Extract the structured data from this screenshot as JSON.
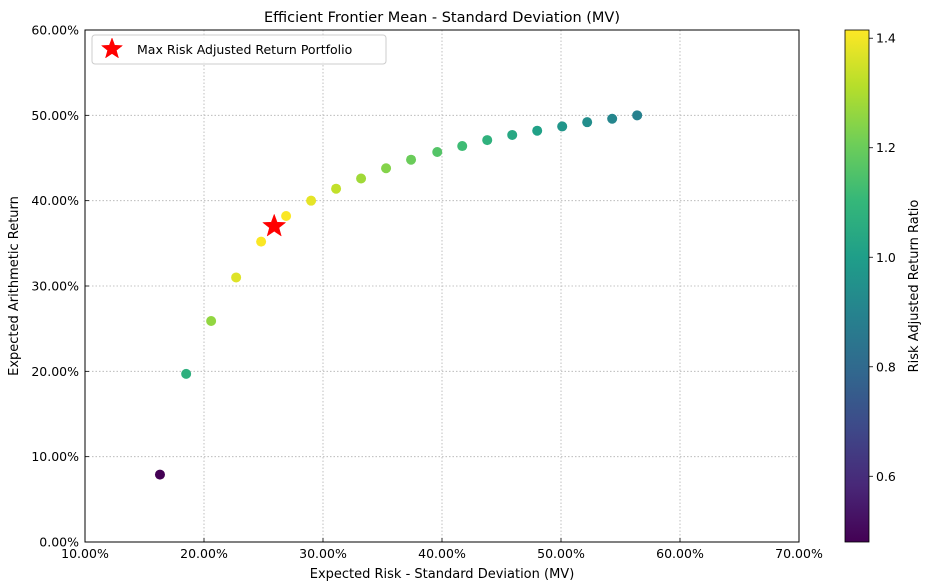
{
  "chart_data": {
    "type": "scatter",
    "title": "Efficient Frontier Mean - Standard Deviation (MV)",
    "xlabel": "Expected Risk - Standard Deviation (MV)",
    "ylabel": "Expected Arithmetic Return",
    "xlim": [
      0.1,
      0.7
    ],
    "ylim": [
      0.0,
      0.6
    ],
    "x_ticks": [
      0.1,
      0.2,
      0.3,
      0.4,
      0.5,
      0.6,
      0.7
    ],
    "x_tick_labels": [
      "10.00%",
      "20.00%",
      "30.00%",
      "40.00%",
      "50.00%",
      "60.00%",
      "70.00%"
    ],
    "y_ticks": [
      0.0,
      0.1,
      0.2,
      0.3,
      0.4,
      0.5,
      0.6
    ],
    "y_tick_labels": [
      "0.00%",
      "10.00%",
      "20.00%",
      "30.00%",
      "40.00%",
      "50.00%",
      "60.00%"
    ],
    "grid": true,
    "legend": {
      "location": "top-left",
      "entries": [
        "Max Risk Adjusted Return Portfolio"
      ]
    },
    "colorbar": {
      "label": "Risk Adjusted Return Ratio",
      "range": [
        0.48,
        1.415
      ],
      "ticks": [
        0.6,
        0.8,
        1.0,
        1.2,
        1.4
      ],
      "tick_labels": [
        "0.6",
        "0.8",
        "1.0",
        "1.2",
        "1.4"
      ],
      "colormap": [
        "#440154",
        "#482878",
        "#3e4989",
        "#31688e",
        "#26828e",
        "#1f9e89",
        "#35b779",
        "#6ece58",
        "#b5de2b",
        "#fde725"
      ]
    },
    "points": [
      {
        "x": 0.163,
        "y": 0.079,
        "ratio": 0.48
      },
      {
        "x": 0.185,
        "y": 0.197,
        "ratio": 1.07
      },
      {
        "x": 0.206,
        "y": 0.259,
        "ratio": 1.26
      },
      {
        "x": 0.227,
        "y": 0.31,
        "ratio": 1.37
      },
      {
        "x": 0.248,
        "y": 0.352,
        "ratio": 1.41
      },
      {
        "x": 0.269,
        "y": 0.382,
        "ratio": 1.41
      },
      {
        "x": 0.29,
        "y": 0.4,
        "ratio": 1.38
      },
      {
        "x": 0.311,
        "y": 0.414,
        "ratio": 1.33
      },
      {
        "x": 0.332,
        "y": 0.426,
        "ratio": 1.28
      },
      {
        "x": 0.353,
        "y": 0.438,
        "ratio": 1.24
      },
      {
        "x": 0.374,
        "y": 0.448,
        "ratio": 1.2
      },
      {
        "x": 0.396,
        "y": 0.457,
        "ratio": 1.16
      },
      {
        "x": 0.417,
        "y": 0.464,
        "ratio": 1.12
      },
      {
        "x": 0.438,
        "y": 0.471,
        "ratio": 1.08
      },
      {
        "x": 0.459,
        "y": 0.477,
        "ratio": 1.04
      },
      {
        "x": 0.48,
        "y": 0.482,
        "ratio": 1.01
      },
      {
        "x": 0.501,
        "y": 0.487,
        "ratio": 0.97
      },
      {
        "x": 0.522,
        "y": 0.492,
        "ratio": 0.94
      },
      {
        "x": 0.543,
        "y": 0.496,
        "ratio": 0.91
      },
      {
        "x": 0.564,
        "y": 0.5,
        "ratio": 0.89
      }
    ],
    "highlight": {
      "label": "Max Risk Adjusted Return Portfolio",
      "x": 0.259,
      "y": 0.37,
      "color": "#ff0000",
      "marker": "star"
    }
  }
}
